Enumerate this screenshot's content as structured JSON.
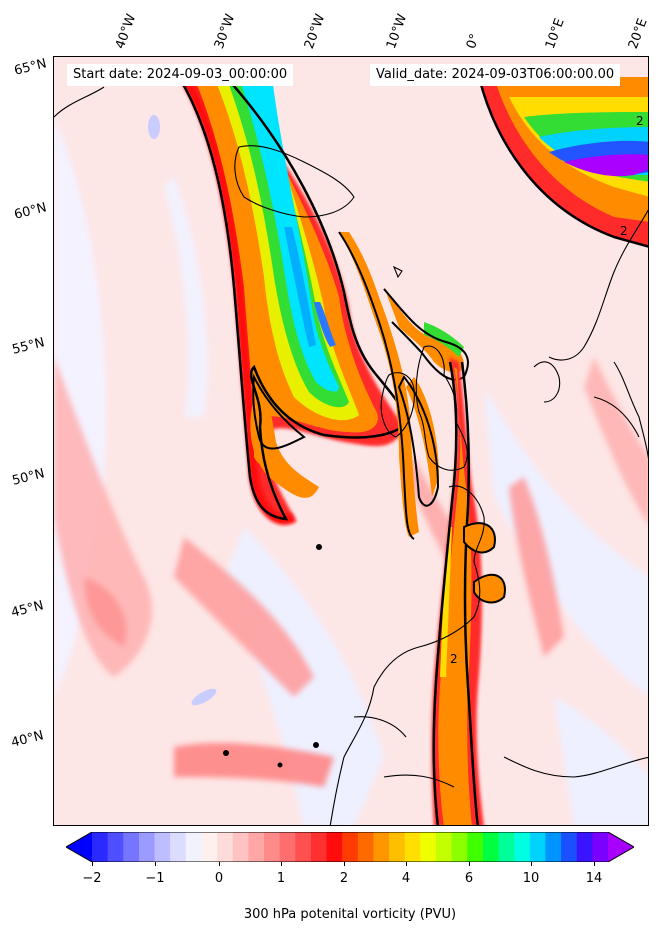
{
  "header": {
    "start_date": "Start date: 2024-09-03_00:00:00",
    "valid_date": "Valid_date: 2024-09-03T06:00:00.00"
  },
  "map": {
    "longitude_labels": [
      "40°W",
      "30°W",
      "20°W",
      "10°W",
      "0°",
      "10°E",
      "20°E"
    ],
    "latitude_labels": [
      "65°N",
      "60°N",
      "55°N",
      "50°N",
      "45°N",
      "40°N"
    ],
    "contour_labels": [
      "2",
      "2",
      "2"
    ],
    "colors": {
      "background_low": "#fde6e6",
      "pink": "#ff9a9a",
      "red": "#ff2020",
      "orange": "#ff8800",
      "yellow": "#ffdd00",
      "green": "#33dd33",
      "cyan": "#00e5ff",
      "blue": "#2255ff",
      "purple": "#aa00ff",
      "coast": "#000000"
    }
  },
  "colorbar": {
    "tick_labels": [
      "−2",
      "−1",
      "0",
      "1",
      "2",
      "4",
      "6",
      "10",
      "14"
    ],
    "label": "300 hPa potenital vorticity (PVU)",
    "colors": [
      "#0000ff",
      "#2a2aff",
      "#4f4fff",
      "#7575ff",
      "#9a9aff",
      "#bdbdff",
      "#dcdcff",
      "#f2f2ff",
      "#fff0f0",
      "#ffdcdc",
      "#ffc2c2",
      "#ffa6a6",
      "#ff8a8a",
      "#ff6e6e",
      "#ff5050",
      "#ff3030",
      "#ff0c0c",
      "#ff3c00",
      "#ff6a00",
      "#ff9600",
      "#ffbe00",
      "#ffe000",
      "#eeff00",
      "#c2ff00",
      "#8cff00",
      "#40ff00",
      "#00ff40",
      "#00ff9a",
      "#00ffe0",
      "#00d2ff",
      "#0094ff",
      "#1a50ff",
      "#3a14ff",
      "#7a00ff",
      "#a800ff"
    ]
  }
}
